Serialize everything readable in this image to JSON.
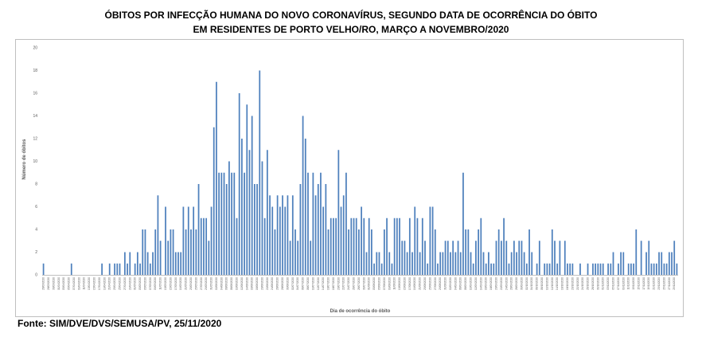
{
  "chart_data": {
    "type": "bar",
    "title": "ÓBITOS POR INFECÇÃO HUMANA DO NOVO CORONAVÍRUS, SEGUNDO DATA DE OCORRÊNCIA DO ÓBITO",
    "subtitle": "EM RESIDENTES DE PORTO VELHO/RO, MARÇO A NOVEMBRO/2020",
    "xlabel": "Dia de ocorrência do óbito",
    "ylabel": "Número de óbitos",
    "ylim": [
      0,
      20
    ],
    "yticks": [
      0,
      2,
      4,
      6,
      8,
      10,
      12,
      14,
      16,
      18,
      20
    ],
    "grid": false,
    "legend": "none",
    "bar_color": "#4f81bd",
    "start_date": "2020-03-26",
    "end_date": "2020-11-24",
    "tick_step_days": 2,
    "values": [
      1,
      0,
      0,
      0,
      0,
      0,
      0,
      0,
      0,
      0,
      0,
      1,
      0,
      0,
      0,
      0,
      0,
      0,
      0,
      0,
      0,
      0,
      0,
      1,
      0,
      0,
      1,
      0,
      1,
      1,
      1,
      0,
      2,
      1,
      2,
      0,
      1,
      2,
      1,
      4,
      4,
      2,
      1,
      2,
      4,
      7,
      3,
      0,
      6,
      3,
      4,
      4,
      2,
      2,
      2,
      6,
      4,
      6,
      4,
      6,
      4,
      8,
      5,
      5,
      5,
      3,
      6,
      13,
      17,
      9,
      9,
      9,
      8,
      10,
      9,
      9,
      5,
      16,
      12,
      9,
      15,
      11,
      14,
      8,
      8,
      18,
      10,
      5,
      11,
      7,
      6,
      4,
      7,
      6,
      7,
      6,
      7,
      3,
      7,
      4,
      3,
      8,
      14,
      12,
      9,
      3,
      9,
      7,
      8,
      9,
      6,
      8,
      4,
      5,
      5,
      5,
      11,
      6,
      7,
      9,
      4,
      5,
      5,
      5,
      4,
      6,
      5,
      2,
      5,
      4,
      1,
      2,
      2,
      1,
      4,
      5,
      2,
      1,
      5,
      5,
      5,
      3,
      3,
      2,
      5,
      2,
      6,
      5,
      2,
      5,
      3,
      1,
      6,
      6,
      4,
      1,
      2,
      2,
      3,
      3,
      2,
      3,
      2,
      3,
      2,
      9,
      4,
      4,
      2,
      1,
      3,
      4,
      5,
      2,
      1,
      2,
      1,
      1,
      3,
      4,
      3,
      5,
      3,
      1,
      2,
      3,
      2,
      3,
      3,
      2,
      1,
      4,
      2,
      0,
      1,
      3,
      0,
      1,
      1,
      1,
      4,
      3,
      1,
      3,
      0,
      3,
      1,
      1,
      1,
      0,
      0,
      1,
      0,
      0,
      1,
      0,
      1,
      1,
      1,
      1,
      1,
      0,
      1,
      1,
      2,
      0,
      1,
      2,
      2,
      0,
      1,
      1,
      1,
      4,
      0,
      3,
      0,
      2,
      3,
      1,
      1,
      1,
      2,
      2,
      1,
      1,
      2,
      2,
      3,
      1
    ]
  },
  "source_text": "Fonte: SIM/DVE/DVS/SEMUSA/PV, 25/11/2020"
}
